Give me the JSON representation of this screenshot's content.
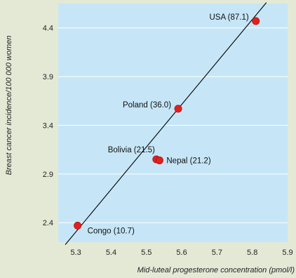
{
  "chart_data": {
    "type": "scatter",
    "title": "",
    "xlabel": "Mid-luteal progesterone concentration (pmol/l)",
    "ylabel": "Breast cancer incidence/100 000 women",
    "xlim": [
      5.25,
      5.9
    ],
    "ylim": [
      2.2,
      4.65
    ],
    "x_ticks": [
      "5.3",
      "5.4",
      "5.5",
      "5.6",
      "5.7",
      "5.8",
      "5.9"
    ],
    "y_ticks": [
      "2.4",
      "2.9",
      "3.4",
      "3.9",
      "4.4"
    ],
    "grid": "horizontal",
    "points": [
      {
        "label": "USA (87.1)",
        "x": 5.81,
        "y": 4.47,
        "label_side": "left"
      },
      {
        "label": "Poland (36.0)",
        "x": 5.59,
        "y": 3.57,
        "label_side": "left"
      },
      {
        "label": "Bolivia (21.5)",
        "x": 5.528,
        "y": 3.05,
        "label_side": "left-up"
      },
      {
        "label": "Nepal (21.2)",
        "x": 5.537,
        "y": 3.04,
        "label_side": "right"
      },
      {
        "label": "Congo (10.7)",
        "x": 5.305,
        "y": 2.37,
        "label_side": "right-down"
      }
    ],
    "regression_line": {
      "x": [
        5.27,
        5.84
      ],
      "y": [
        2.175,
        4.66
      ]
    },
    "colors": {
      "plot_background": "#c6e6f7",
      "page_background": "#e4e9d6",
      "gridline": "#ffffff",
      "marker": "#e0201f",
      "line": "#000000"
    }
  }
}
